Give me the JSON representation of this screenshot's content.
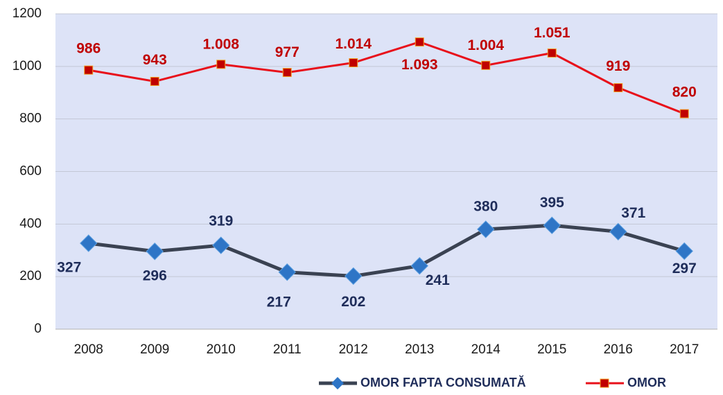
{
  "chart_data": {
    "type": "line",
    "categories": [
      "2008",
      "2009",
      "2010",
      "2011",
      "2012",
      "2013",
      "2014",
      "2015",
      "2016",
      "2017"
    ],
    "series": [
      {
        "name": "OMOR FAPTA CONSUMATĂ",
        "color": "#3a4252",
        "marker_color": "#2e75c6",
        "values": [
          327,
          296,
          319,
          217,
          202,
          241,
          380,
          395,
          371,
          297
        ]
      },
      {
        "name": "OMOR",
        "color": "#e8101a",
        "marker_color": "#c00000",
        "values": [
          986,
          943,
          1008,
          977,
          1014,
          1093,
          1004,
          1051,
          919,
          820
        ],
        "value_labels": [
          "986",
          "943",
          "1.008",
          "977",
          "1.014",
          "1.093",
          "1.004",
          "1.051",
          "919",
          "820"
        ]
      }
    ],
    "ylim": [
      0,
      1200
    ],
    "yticks": [
      0,
      200,
      400,
      600,
      800,
      1000,
      1200
    ],
    "grid": true,
    "legend": "bottom"
  }
}
